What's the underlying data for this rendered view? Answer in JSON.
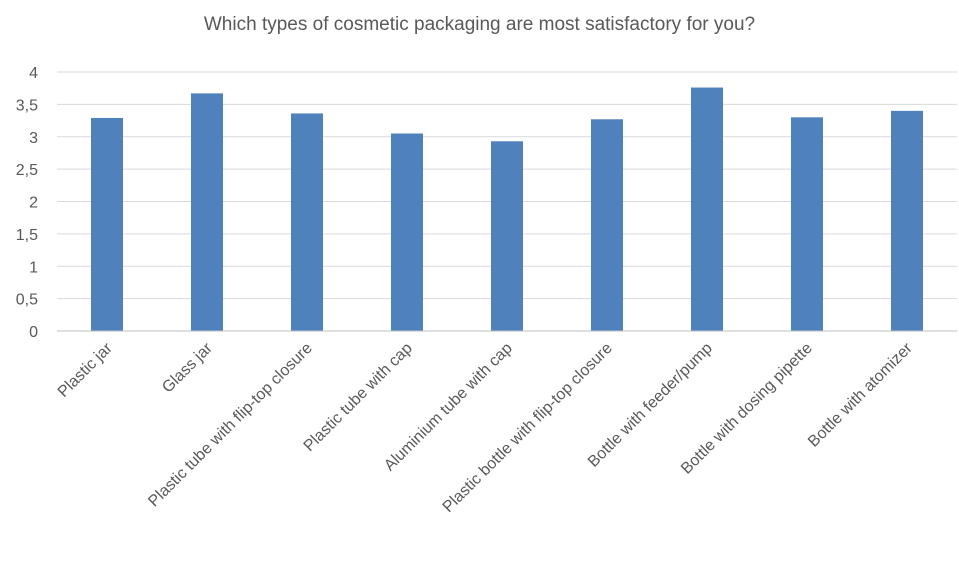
{
  "chart_data": {
    "type": "bar",
    "title": "Which types of cosmetic packaging are most satisfactory for you?",
    "xlabel": "",
    "ylabel": "",
    "ylim": [
      0,
      4
    ],
    "yticks": [
      "0",
      "0,5",
      "1",
      "1,5",
      "2",
      "2,5",
      "3",
      "3,5",
      "4"
    ],
    "grid": true,
    "legend": "none",
    "bar_color": "#4f81bd",
    "grid_color": "#d9d9d9",
    "categories": [
      "Plastic jar",
      "Glass jar",
      "Plastic tube with flip-top closure",
      "Plastic tube with cap",
      "Aluminium tube with cap",
      "Plastic bottle with flip-top closure",
      "Bottle with feeder/pump",
      "Bottle with dosing pipette",
      "Bottle with atomizer"
    ],
    "values": [
      3.29,
      3.67,
      3.36,
      3.05,
      2.93,
      3.27,
      3.76,
      3.3,
      3.4
    ]
  }
}
